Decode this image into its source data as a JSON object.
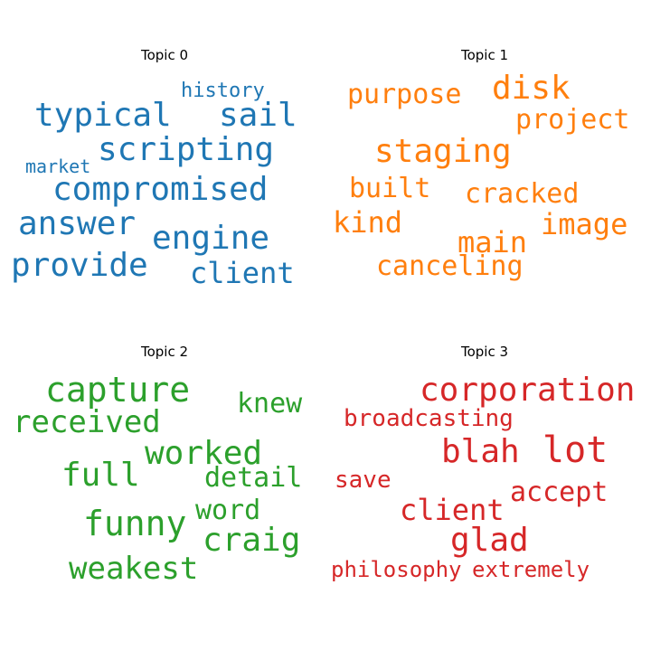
{
  "chart_data": [
    {
      "type": "wordcloud",
      "title": "Topic 0",
      "color": "#1f77b4",
      "words": [
        "typical",
        "sail",
        "history",
        "scripting",
        "market",
        "compromised",
        "answer",
        "engine",
        "provide",
        "client"
      ]
    },
    {
      "type": "wordcloud",
      "title": "Topic 1",
      "color": "#ff7f0e",
      "words": [
        "purpose",
        "disk",
        "project",
        "staging",
        "built",
        "cracked",
        "kind",
        "image",
        "main",
        "canceling"
      ]
    },
    {
      "type": "wordcloud",
      "title": "Topic 2",
      "color": "#2ca02c",
      "words": [
        "capture",
        "knew",
        "received",
        "worked",
        "full",
        "detail",
        "funny",
        "word",
        "craig",
        "weakest"
      ]
    },
    {
      "type": "wordcloud",
      "title": "Topic 3",
      "color": "#d62728",
      "words": [
        "corporation",
        "broadcasting",
        "blah",
        "lot",
        "save",
        "accept",
        "client",
        "glad",
        "philosophy",
        "extremely"
      ]
    }
  ]
}
